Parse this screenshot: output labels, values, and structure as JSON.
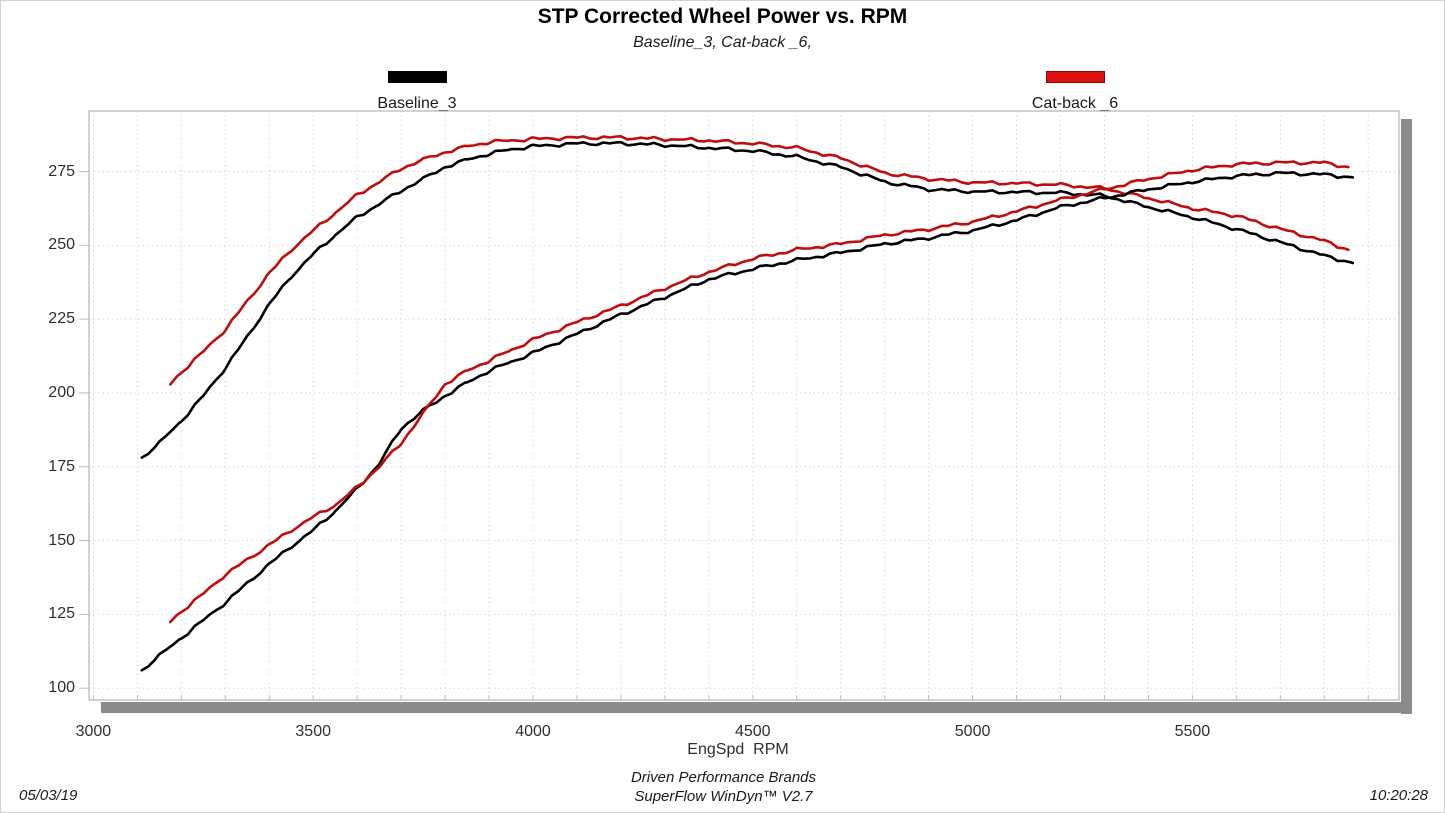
{
  "title": "STP Corrected Wheel Power vs. RPM",
  "subtitle": "Baseline_3, Cat-back _6,",
  "legend": [
    {
      "label": "Baseline_3",
      "color": "#000000",
      "border": "#000000"
    },
    {
      "label": "Cat-back _6",
      "color": "#dd1111",
      "border": "#a00000"
    }
  ],
  "footer": {
    "date": "05/03/19",
    "brand_line": "Driven Performance Brands",
    "version_line": "SuperFlow WinDyn™ V2.7",
    "time": "10:20:28"
  },
  "colors": {
    "baseline": "#000000",
    "catback": "#c00d0d",
    "grid": "#d6d6d6",
    "frame": "#b5b5b5",
    "shadow": "#8c8c8c",
    "tick": "#bdbdbd"
  },
  "chart_data": {
    "type": "line",
    "title": "STP Corrected Wheel Power vs. RPM",
    "subtitle": "Baseline_3, Cat-back _6,",
    "xlabel": "EngSpd  RPM",
    "ylabel": "",
    "xlim": [
      2990,
      5970
    ],
    "ylim": [
      96,
      295.5
    ],
    "x_ticks": [
      3000,
      3500,
      4000,
      4500,
      5000,
      5500
    ],
    "y_ticks": [
      100,
      125,
      150,
      175,
      200,
      225,
      250,
      275
    ],
    "grid": "dotted light-gray, vertical every 100 RPM, horizontal every 25",
    "legend_position": "top",
    "series": [
      {
        "name": "Baseline_3 upper curve",
        "legend": "Baseline_3",
        "color": "#000000",
        "points": [
          [
            3110,
            178
          ],
          [
            3150,
            183
          ],
          [
            3200,
            190.5
          ],
          [
            3250,
            199
          ],
          [
            3300,
            208.5
          ],
          [
            3350,
            219
          ],
          [
            3400,
            230
          ],
          [
            3450,
            239.5
          ],
          [
            3500,
            247
          ],
          [
            3550,
            253.5
          ],
          [
            3600,
            259.5
          ],
          [
            3650,
            264
          ],
          [
            3700,
            268.5
          ],
          [
            3750,
            272.5
          ],
          [
            3800,
            276.5
          ],
          [
            3850,
            279
          ],
          [
            3900,
            281
          ],
          [
            3950,
            282.5
          ],
          [
            4000,
            283.5
          ],
          [
            4100,
            284.5
          ],
          [
            4200,
            284.5
          ],
          [
            4300,
            284
          ],
          [
            4400,
            283
          ],
          [
            4500,
            282
          ],
          [
            4600,
            280
          ],
          [
            4700,
            276.5
          ],
          [
            4800,
            271.5
          ],
          [
            4900,
            269
          ],
          [
            5000,
            268.2
          ],
          [
            5100,
            268
          ],
          [
            5200,
            267.8
          ],
          [
            5300,
            266.8
          ],
          [
            5400,
            263
          ],
          [
            5500,
            259.5
          ],
          [
            5600,
            255.5
          ],
          [
            5700,
            251
          ],
          [
            5800,
            246.5
          ],
          [
            5865,
            244
          ]
        ]
      },
      {
        "name": "Cat-back _6 upper curve",
        "legend": "Cat-back _6",
        "color": "#c00d0d",
        "points": [
          [
            3175,
            203
          ],
          [
            3200,
            207
          ],
          [
            3250,
            214
          ],
          [
            3300,
            221.5
          ],
          [
            3350,
            231
          ],
          [
            3400,
            240.5
          ],
          [
            3450,
            248.5
          ],
          [
            3500,
            255
          ],
          [
            3550,
            261
          ],
          [
            3600,
            267
          ],
          [
            3650,
            271.5
          ],
          [
            3700,
            276
          ],
          [
            3750,
            279
          ],
          [
            3800,
            281.5
          ],
          [
            3850,
            283.5
          ],
          [
            3900,
            285
          ],
          [
            3950,
            285.5
          ],
          [
            4000,
            286
          ],
          [
            4100,
            286.5
          ],
          [
            4200,
            286.5
          ],
          [
            4300,
            286
          ],
          [
            4400,
            285.5
          ],
          [
            4500,
            284.5
          ],
          [
            4600,
            283
          ],
          [
            4700,
            279.5
          ],
          [
            4800,
            274.5
          ],
          [
            4900,
            272.5
          ],
          [
            5000,
            271.3
          ],
          [
            5100,
            271
          ],
          [
            5200,
            270.5
          ],
          [
            5300,
            269.3
          ],
          [
            5400,
            266
          ],
          [
            5500,
            262.5
          ],
          [
            5600,
            260
          ],
          [
            5700,
            255.5
          ],
          [
            5800,
            251.5
          ],
          [
            5855,
            248.5
          ]
        ]
      },
      {
        "name": "Baseline_3 lower curve",
        "legend": "Baseline_3",
        "color": "#000000",
        "points": [
          [
            3110,
            106
          ],
          [
            3150,
            111
          ],
          [
            3200,
            117
          ],
          [
            3250,
            123
          ],
          [
            3300,
            129
          ],
          [
            3350,
            135.5
          ],
          [
            3400,
            142
          ],
          [
            3450,
            148
          ],
          [
            3500,
            153.5
          ],
          [
            3550,
            160
          ],
          [
            3600,
            167.5
          ],
          [
            3650,
            176
          ],
          [
            3700,
            188
          ],
          [
            3750,
            194
          ],
          [
            3800,
            199
          ],
          [
            3850,
            203.5
          ],
          [
            3900,
            207.5
          ],
          [
            3950,
            210.5
          ],
          [
            4000,
            213.5
          ],
          [
            4100,
            220
          ],
          [
            4200,
            226.5
          ],
          [
            4300,
            232.5
          ],
          [
            4400,
            238.5
          ],
          [
            4500,
            242
          ],
          [
            4600,
            245
          ],
          [
            4700,
            247.5
          ],
          [
            4800,
            250.5
          ],
          [
            4900,
            252.5
          ],
          [
            5000,
            255
          ],
          [
            5100,
            258.5
          ],
          [
            5200,
            263
          ],
          [
            5300,
            266
          ],
          [
            5400,
            269
          ],
          [
            5500,
            271.5
          ],
          [
            5600,
            273.5
          ],
          [
            5700,
            274.5
          ],
          [
            5800,
            274
          ],
          [
            5865,
            273
          ]
        ]
      },
      {
        "name": "Cat-back _6 lower curve",
        "legend": "Cat-back _6",
        "color": "#c00d0d",
        "points": [
          [
            3175,
            122.5
          ],
          [
            3200,
            126
          ],
          [
            3250,
            132
          ],
          [
            3300,
            138.5
          ],
          [
            3350,
            143.5
          ],
          [
            3400,
            148.5
          ],
          [
            3450,
            153.5
          ],
          [
            3500,
            158
          ],
          [
            3550,
            162
          ],
          [
            3600,
            168
          ],
          [
            3650,
            175
          ],
          [
            3700,
            183
          ],
          [
            3750,
            193
          ],
          [
            3800,
            203
          ],
          [
            3850,
            207.5
          ],
          [
            3900,
            211
          ],
          [
            3950,
            214.5
          ],
          [
            4000,
            218
          ],
          [
            4100,
            224
          ],
          [
            4200,
            229.5
          ],
          [
            4300,
            235.5
          ],
          [
            4400,
            241
          ],
          [
            4500,
            245.5
          ],
          [
            4600,
            248.5
          ],
          [
            4700,
            250.5
          ],
          [
            4800,
            253.5
          ],
          [
            4900,
            255.5
          ],
          [
            5000,
            258
          ],
          [
            5100,
            261.5
          ],
          [
            5200,
            265.5
          ],
          [
            5300,
            269
          ],
          [
            5400,
            272.5
          ],
          [
            5500,
            275.5
          ],
          [
            5600,
            277.5
          ],
          [
            5700,
            278
          ],
          [
            5800,
            278
          ],
          [
            5855,
            276.5
          ]
        ]
      }
    ]
  }
}
